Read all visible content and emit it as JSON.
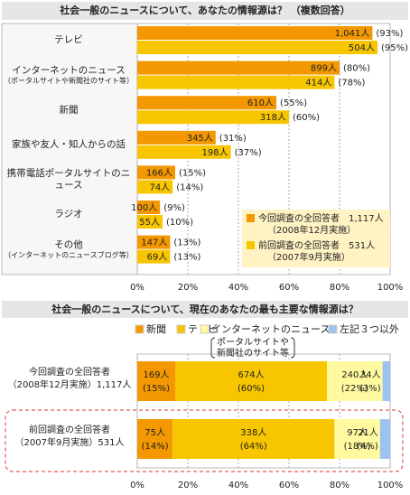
{
  "chart_data": [
    {
      "type": "bar",
      "title": "社会一般のニュースについて、あなたの情報源は？ （複数回答）",
      "categories": [
        "テレビ",
        "インターネットのニュース",
        "新聞",
        "家族や友人・知人からの話",
        "携帯電話ポータルサイトのニュース",
        "ラジオ",
        "その他"
      ],
      "category_notes": [
        null,
        "（ポータルサイトや新聞社のサイト等）",
        null,
        null,
        null,
        null,
        "（インターネットのニュースブログ等）"
      ],
      "series": [
        {
          "name": "今回調査の全回答者　1,117人",
          "note": "（2008年12月実施）",
          "color": "#f39800",
          "values": [
            93,
            80,
            55,
            31,
            15,
            9,
            13
          ],
          "value_labels": [
            "(93%)",
            "(80%)",
            "(55%)",
            "(31%)",
            "(15%)",
            "(9%)",
            "(13%)"
          ],
          "count_labels": [
            "1,041人",
            "899人",
            "610人",
            "345人",
            "166人",
            "100人",
            "147人"
          ]
        },
        {
          "name": "前回調査の全回答者　531人",
          "note": "（2007年9月実施）",
          "color": "#f7c600",
          "values": [
            95,
            78,
            60,
            37,
            14,
            10,
            13
          ],
          "value_labels": [
            "(95%)",
            "(78%)",
            "(60%)",
            "(37%)",
            "(14%)",
            "(10%)",
            "(13%)"
          ],
          "count_labels": [
            "504人",
            "414人",
            "318人",
            "198人",
            "74人",
            "55人",
            "69人"
          ]
        }
      ],
      "xlim": [
        0,
        100
      ],
      "xticks": [
        {
          "value": 0,
          "label": "0%"
        },
        {
          "value": 20,
          "label": "20%"
        },
        {
          "value": 40,
          "label": "40%"
        },
        {
          "value": 60,
          "label": "60%"
        },
        {
          "value": 80,
          "label": "80%"
        },
        {
          "value": 100,
          "label": "100%"
        }
      ],
      "grid": true,
      "legend": "lower right"
    },
    {
      "type": "stacked_bar",
      "title": "社会一般のニュースについて、現在のあなたの最も主要な情報源は？",
      "categories": [
        "今回調査の全回答者",
        "前回調査の全回答者"
      ],
      "category_notes": [
        "（2008年12月実施）",
        "（2007年9月実施）"
      ],
      "category_counts": [
        "1,117人",
        "531人"
      ],
      "series": [
        {
          "name": "新聞",
          "color": "#f39800",
          "values": [
            15,
            14
          ],
          "value_labels": [
            "(15%)",
            "(14%)"
          ],
          "count_labels": [
            "169人",
            "75人"
          ]
        },
        {
          "name": "テレビ",
          "color": "#f7c600",
          "values": [
            60,
            64
          ],
          "value_labels": [
            "(60%)",
            "(64%)"
          ],
          "count_labels": [
            "674人",
            "338人"
          ]
        },
        {
          "name": "インターネットのニュース",
          "note": [
            "ポータルサイトや",
            "新聞社のサイト等"
          ],
          "color": "#fffaa0",
          "values": [
            22,
            18
          ],
          "value_labels": [
            "(22%)",
            "(18%)"
          ],
          "count_labels": [
            "240人",
            "97人"
          ]
        },
        {
          "name": "左記３つ以外",
          "color": "#9cc3ee",
          "values": [
            3,
            4
          ],
          "value_labels": [
            "(3%)",
            "(4%)"
          ],
          "count_labels": [
            "34人",
            "21人"
          ]
        }
      ],
      "xlim": [
        0,
        100
      ],
      "xticks": [
        {
          "value": 0,
          "label": "0%"
        },
        {
          "value": 20,
          "label": "20%"
        },
        {
          "value": 40,
          "label": "40%"
        },
        {
          "value": 60,
          "label": "60%"
        },
        {
          "value": 80,
          "label": "80%"
        },
        {
          "value": 100,
          "label": "100%"
        }
      ],
      "grid": true,
      "legend": "top"
    }
  ]
}
